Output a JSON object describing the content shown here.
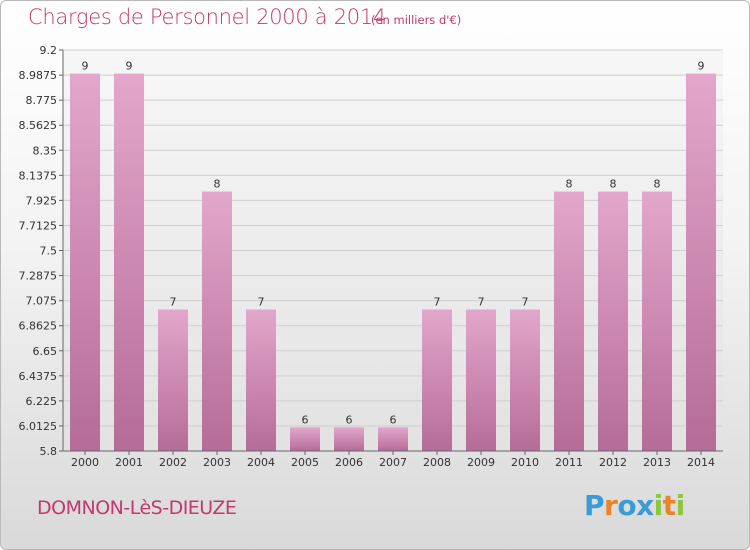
{
  "header": {
    "title": "Charges de Personnel 2000 à 2014",
    "subtitle": "(en milliers d'€)"
  },
  "footer": {
    "city": "DOMNON-LèS-DIEUZE",
    "logo_letters": [
      {
        "ch": "P",
        "color": "#3a9bd9"
      },
      {
        "ch": "r",
        "color": "#e8852a"
      },
      {
        "ch": "o",
        "color": "#3a9bd9"
      },
      {
        "ch": "x",
        "color": "#3a9bd9"
      },
      {
        "ch": "i",
        "color": "#8dc63f"
      },
      {
        "ch": "t",
        "color": "#e8852a"
      },
      {
        "ch": "i",
        "color": "#8dc63f"
      }
    ]
  },
  "chart_data": {
    "type": "bar",
    "categories": [
      "2000",
      "2001",
      "2002",
      "2003",
      "2004",
      "2005",
      "2006",
      "2007",
      "2008",
      "2009",
      "2010",
      "2011",
      "2012",
      "2013",
      "2014"
    ],
    "values": [
      9,
      9,
      7,
      8,
      7,
      6,
      6,
      6,
      7,
      7,
      7,
      8,
      8,
      8,
      9
    ],
    "data_labels": [
      "9",
      "9",
      "7",
      "8",
      "7",
      "6",
      "6",
      "6",
      "7",
      "7",
      "7",
      "8",
      "8",
      "8",
      "9"
    ],
    "ylim": [
      5.8,
      9.2
    ],
    "yticks": [
      5.8,
      6.0125,
      6.225,
      6.4375,
      6.65,
      6.8625,
      7.075,
      7.2875,
      7.5,
      7.7125,
      7.925,
      8.1375,
      8.35,
      8.5625,
      8.775,
      8.9875,
      9.2
    ],
    "ytick_labels": [
      "5.8",
      "6.0125",
      "6.225",
      "6.4375",
      "6.65",
      "6.8625",
      "7.075",
      "7.2875",
      "7.5",
      "7.7125",
      "7.925",
      "8.1375",
      "8.35",
      "8.5625",
      "8.775",
      "8.9875",
      "9.2"
    ],
    "grid": true,
    "bar_color_top": "#e3a7cb",
    "bar_color_bottom": "#b56c97",
    "xlabel": "",
    "ylabel": ""
  }
}
